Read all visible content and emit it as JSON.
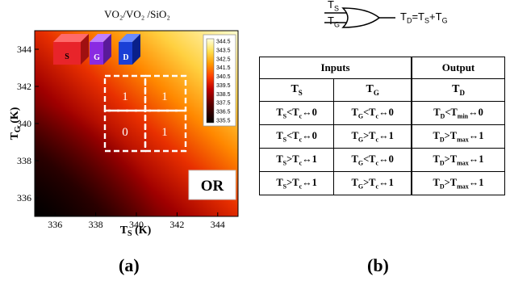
{
  "panel_a": {
    "title": "VO₂/VO₂ /SiO₂",
    "xlabel_main": "T",
    "xlabel_sub": "S",
    "xlabel_unit": " (K)",
    "ylabel_main": "T",
    "ylabel_sub": "G",
    "ylabel_unit": " (K)",
    "x_ticks": [
      "336",
      "338",
      "340",
      "342",
      "344"
    ],
    "y_ticks": [
      "336",
      "338",
      "340",
      "342",
      "344"
    ],
    "colorbar_ticks": [
      "344.5",
      "343.5",
      "342.5",
      "341.5",
      "340.5",
      "339.5",
      "338.5",
      "337.5",
      "336.5",
      "335.5"
    ],
    "cubes": [
      {
        "label": "S",
        "color": "#e8242a"
      },
      {
        "label": "G",
        "color": "#8a2be2"
      },
      {
        "label": "D",
        "color": "#1a3fd6"
      }
    ],
    "quadrant_values": [
      "1",
      "1",
      "0",
      "1"
    ],
    "gate_label": "OR",
    "caption": "(a)",
    "colors": {
      "cold": "#000000",
      "mid": "#cc0000",
      "warm": "#ff8800",
      "hot": "#ffffcc"
    }
  },
  "chart_data": {
    "type": "heatmap",
    "title": "VO₂/VO₂ /SiO₂",
    "xlabel": "TS (K)",
    "ylabel": "TG (K)",
    "xlim": [
      335,
      345
    ],
    "ylim": [
      335,
      345
    ],
    "colorbar_range": [
      335.5,
      344.5
    ],
    "regions": [
      {
        "ts": "low",
        "tg": "low",
        "output": "0"
      },
      {
        "ts": "low",
        "tg": "high",
        "output": "1"
      },
      {
        "ts": "high",
        "tg": "low",
        "output": "1"
      },
      {
        "ts": "high",
        "tg": "high",
        "output": "1"
      }
    ]
  },
  "panel_b": {
    "gate": {
      "input1": "T",
      "input1_sub": "S",
      "input2": "T",
      "input2_sub": "G",
      "output_text": "T",
      "output_sub": "D",
      "output_eq": "=T",
      "output_eq_sub1": "S",
      "plus": "+T",
      "output_eq_sub2": "G"
    },
    "table": {
      "header_inputs": "Inputs",
      "header_output": "Output",
      "col_ts": "T",
      "col_ts_sub": "S",
      "col_tg": "T",
      "col_tg_sub": "G",
      "col_td": "T",
      "col_td_sub": "D",
      "rows": [
        {
          "ts": "T",
          "ts_s": "S",
          "ts_op": "<T",
          "ts_c": "c",
          "ts_v": "↔0",
          "tg": "T",
          "tg_s": "G",
          "tg_op": "<T",
          "tg_c": "c",
          "tg_v": "↔0",
          "td": "T",
          "td_s": "D",
          "td_op": "<T",
          "td_c": "min",
          "td_v": "↔0"
        },
        {
          "ts": "T",
          "ts_s": "S",
          "ts_op": "<T",
          "ts_c": "c",
          "ts_v": "↔0",
          "tg": "T",
          "tg_s": "G",
          "tg_op": ">T",
          "tg_c": "c",
          "tg_v": "↔1",
          "td": "T",
          "td_s": "D",
          "td_op": ">T",
          "td_c": "max",
          "td_v": "↔1"
        },
        {
          "ts": "T",
          "ts_s": "S",
          "ts_op": ">T",
          "ts_c": "c",
          "ts_v": "↔1",
          "tg": "T",
          "tg_s": "G",
          "tg_op": "<T",
          "tg_c": "c",
          "tg_v": "↔0",
          "td": "T",
          "td_s": "D",
          "td_op": ">T",
          "td_c": "max",
          "td_v": "↔1"
        },
        {
          "ts": "T",
          "ts_s": "S",
          "ts_op": ">T",
          "ts_c": "c",
          "ts_v": "↔1",
          "tg": "T",
          "tg_s": "G",
          "tg_op": ">T",
          "tg_c": "c",
          "tg_v": "↔1",
          "td": "T",
          "td_s": "D",
          "td_op": ">T",
          "td_c": "max",
          "td_v": "↔1"
        }
      ]
    },
    "caption": "(b)"
  }
}
